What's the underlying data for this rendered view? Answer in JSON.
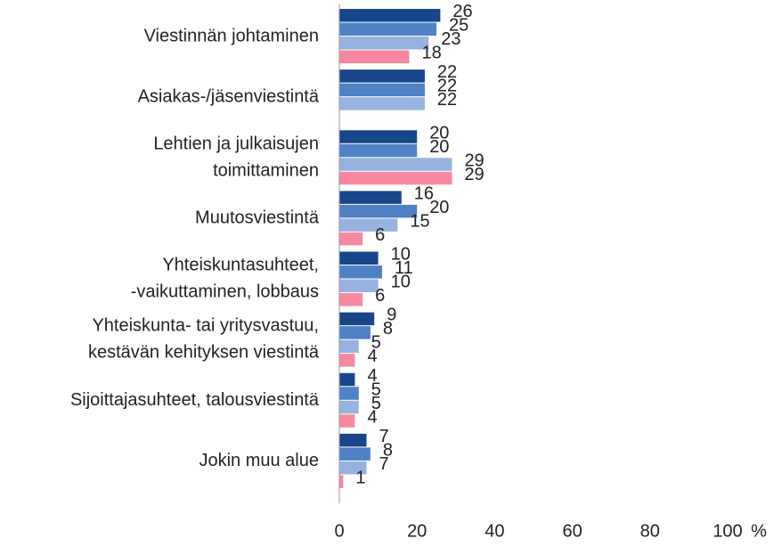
{
  "chart_data": {
    "type": "bar",
    "orientation": "horizontal",
    "categories": [
      "Viestinnän johtaminen",
      "Asiakas-/jäsenviestintä",
      "Lehtien ja julkaisujen\ntoimittaminen",
      "Muutosviestintä",
      "Yhteiskuntasuhteet,\n-vaikuttaminen, lobbaus",
      "Yhteiskunta- tai yritysvastuu,\nkestävän kehityksen viestintä",
      "Sijoittajasuhteet, talousviestintä",
      "Jokin muu alue"
    ],
    "series": [
      {
        "color": "#17468a",
        "values": [
          26,
          22,
          20,
          16,
          10,
          9,
          4,
          7
        ]
      },
      {
        "color": "#4f81c4",
        "values": [
          25,
          22,
          20,
          20,
          11,
          8,
          5,
          8
        ]
      },
      {
        "color": "#95b3de",
        "values": [
          23,
          22,
          29,
          15,
          10,
          5,
          5,
          7
        ]
      },
      {
        "color": "#f7889f",
        "values": [
          18,
          null,
          29,
          6,
          6,
          4,
          4,
          1
        ]
      }
    ],
    "xlim": [
      0,
      100
    ],
    "xticks": [
      0,
      20,
      40,
      60,
      80,
      100
    ],
    "x_label": "%",
    "grid": false
  }
}
